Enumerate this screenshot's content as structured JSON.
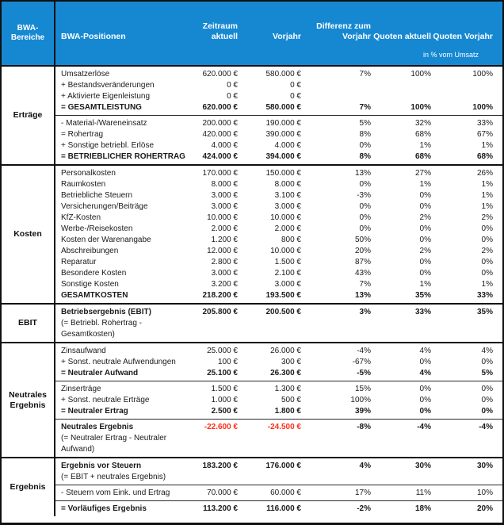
{
  "colors": {
    "header_bg": "#1688d2",
    "negative": "#ff2d16",
    "header_text": "#ffffff",
    "border": "#101010"
  },
  "header": {
    "col0": "BWA-Bereiche",
    "columns": [
      "BWA-Positionen",
      "Zeitraum aktuell",
      "Vorjahr",
      "Differenz zum Vorjahr",
      "Quoten aktuell",
      "Quoten Vorjahr"
    ],
    "subheader": "in % vom Umsatz"
  },
  "sections": [
    {
      "id": "ertraege",
      "label": "Erträge",
      "blocks": [
        {
          "rows": [
            {
              "label": "Umsatzerlöse",
              "v": [
                "620.000 €",
                "580.000 €",
                "7%",
                "100%",
                "100%"
              ]
            },
            {
              "label": "+ Bestandsveränderungen",
              "v": [
                "0 €",
                "0 €",
                "",
                "",
                ""
              ]
            },
            {
              "label": "+ Aktivierte Eigenleistung",
              "v": [
                "0 €",
                "0 €",
                "",
                "",
                ""
              ]
            },
            {
              "label": "= GESAMTLEISTUNG",
              "v": [
                "620.000 €",
                "580.000 €",
                "7%",
                "100%",
                "100%"
              ],
              "bold": true
            }
          ]
        },
        {
          "rows": [
            {
              "label": "- Material-/Wareneinsatz",
              "v": [
                "200.000 €",
                "190.000 €",
                "5%",
                "32%",
                "33%"
              ]
            },
            {
              "label": "= Rohertrag",
              "v": [
                "420.000 €",
                "390.000 €",
                "8%",
                "68%",
                "67%"
              ]
            },
            {
              "label": "+ Sonstige betriebl. Erlöse",
              "v": [
                "4.000 €",
                "4.000 €",
                "0%",
                "1%",
                "1%"
              ]
            },
            {
              "label": "= BETRIEBLICHER ROHERTRAG",
              "v": [
                "424.000 €",
                "394.000 €",
                "8%",
                "68%",
                "68%"
              ],
              "bold": true
            }
          ]
        }
      ]
    },
    {
      "id": "kosten",
      "label": "Kosten",
      "blocks": [
        {
          "rows": [
            {
              "label": "Personalkosten",
              "v": [
                "170.000 €",
                "150.000 €",
                "13%",
                "27%",
                "26%"
              ]
            },
            {
              "label": "Raumkosten",
              "v": [
                "8.000 €",
                "8.000 €",
                "0%",
                "1%",
                "1%"
              ]
            },
            {
              "label": "Betriebliche Steuern",
              "v": [
                "3.000 €",
                "3.100 €",
                "-3%",
                "0%",
                "1%"
              ]
            },
            {
              "label": "Versicherungen/Beiträge",
              "v": [
                "3.000 €",
                "3.000 €",
                "0%",
                "0%",
                "1%"
              ]
            },
            {
              "label": "KfZ-Kosten",
              "v": [
                "10.000 €",
                "10.000 €",
                "0%",
                "2%",
                "2%"
              ]
            },
            {
              "label": "Werbe-/Reisekosten",
              "v": [
                "2.000 €",
                "2.000 €",
                "0%",
                "0%",
                "0%"
              ]
            },
            {
              "label": "Kosten der Warenangabe",
              "v": [
                "1.200 €",
                "800 €",
                "50%",
                "0%",
                "0%"
              ]
            },
            {
              "label": "Abschreibungen",
              "v": [
                "12.000 €",
                "10.000 €",
                "20%",
                "2%",
                "2%"
              ]
            },
            {
              "label": "Reparatur",
              "v": [
                "2.800 €",
                "1.500 €",
                "87%",
                "0%",
                "0%"
              ]
            },
            {
              "label": "Besondere Kosten",
              "v": [
                "3.000 €",
                "2.100 €",
                "43%",
                "0%",
                "0%"
              ]
            },
            {
              "label": "Sonstige Kosten",
              "v": [
                "3.200 €",
                "3.000 €",
                "7%",
                "1%",
                "1%"
              ]
            },
            {
              "label": "GESAMTKOSTEN",
              "v": [
                "218.200 €",
                "193.500 €",
                "13%",
                "35%",
                "33%"
              ],
              "bold": true
            }
          ]
        }
      ]
    },
    {
      "id": "ebit",
      "label": "EBIT",
      "blocks": [
        {
          "rows": [
            {
              "label": "Betriebsergebnis (EBIT)",
              "v": [
                "205.800 €",
                "200.500 €",
                "3%",
                "33%",
                "35%"
              ],
              "bold": true
            },
            {
              "label": "(= Betriebl. Rohertrag -",
              "note": true
            },
            {
              "label": "Gesamtkosten)",
              "note": true
            }
          ]
        }
      ]
    },
    {
      "id": "neutrales-ergebnis",
      "label": "Neutrales Ergebnis",
      "blocks": [
        {
          "rows": [
            {
              "label": "Zinsaufwand",
              "v": [
                "25.000 €",
                "26.000 €",
                "-4%",
                "4%",
                "4%"
              ]
            },
            {
              "label": "+ Sonst. neutrale Aufwendungen",
              "v": [
                "100 €",
                "300 €",
                "-67%",
                "0%",
                "0%"
              ]
            },
            {
              "label": "= Neutraler Aufwand",
              "v": [
                "25.100 €",
                "26.300 €",
                "-5%",
                "4%",
                "5%"
              ],
              "bold": true
            }
          ]
        },
        {
          "rows": [
            {
              "label": "Zinserträge",
              "v": [
                "1.500 €",
                "1.300 €",
                "15%",
                "0%",
                "0%"
              ]
            },
            {
              "label": "+ Sonst. neutrale Erträge",
              "v": [
                "1.000 €",
                "500 €",
                "100%",
                "0%",
                "0%"
              ]
            },
            {
              "label": "= Neutraler Ertrag",
              "v": [
                "2.500 €",
                "1.800 €",
                "39%",
                "0%",
                "0%"
              ],
              "bold": true
            }
          ]
        },
        {
          "rows": [
            {
              "label": "Neutrales Ergebnis",
              "v": [
                "-22.600 €",
                "-24.500 €",
                "-8%",
                "-4%",
                "-4%"
              ],
              "bold": true,
              "red": true
            },
            {
              "label": "(= Neutraler Ertrag - Neutraler",
              "note": true
            },
            {
              "label": "Aufwand)",
              "note": true
            }
          ]
        }
      ]
    },
    {
      "id": "ergebnis",
      "label": "Ergebnis",
      "blocks": [
        {
          "rows": [
            {
              "label": "Ergebnis vor Steuern",
              "v": [
                "183.200 €",
                "176.000 €",
                "4%",
                "30%",
                "30%"
              ],
              "bold": true
            },
            {
              "label": "(= EBIT + neutrales Ergebnis)",
              "note": true
            }
          ]
        },
        {
          "rows": [
            {
              "label": "- Steuern vom Eink. und Ertrag",
              "v": [
                "70.000 €",
                "60.000 €",
                "17%",
                "11%",
                "10%"
              ]
            }
          ]
        },
        {
          "rows": [
            {
              "label": "= Vorläufiges Ergebnis",
              "v": [
                "113.200 €",
                "116.000 €",
                "-2%",
                "18%",
                "20%"
              ],
              "bold": true
            }
          ]
        }
      ]
    }
  ]
}
